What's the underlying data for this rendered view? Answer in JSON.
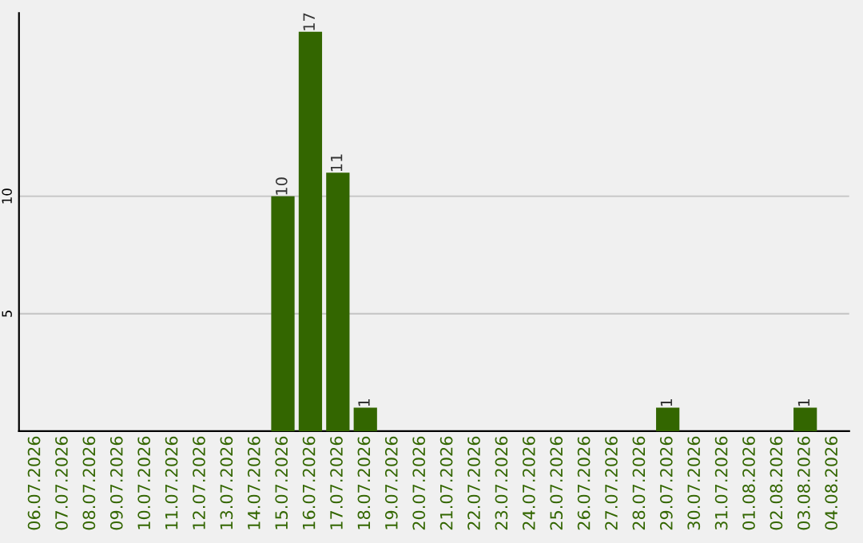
{
  "chart_data": {
    "type": "bar",
    "categories": [
      "06.07.2026",
      "07.07.2026",
      "08.07.2026",
      "09.07.2026",
      "10.07.2026",
      "11.07.2026",
      "12.07.2026",
      "13.07.2026",
      "14.07.2026",
      "15.07.2026",
      "16.07.2026",
      "17.07.2026",
      "18.07.2026",
      "19.07.2026",
      "20.07.2026",
      "21.07.2026",
      "22.07.2026",
      "23.07.2026",
      "24.07.2026",
      "25.07.2026",
      "26.07.2026",
      "27.07.2026",
      "28.07.2026",
      "29.07.2026",
      "30.07.2026",
      "31.07.2026",
      "01.08.2026",
      "02.08.2026",
      "03.08.2026",
      "04.08.2026"
    ],
    "values": [
      0,
      0,
      0,
      0,
      0,
      0,
      0,
      0,
      0,
      10,
      17,
      11,
      1,
      0,
      0,
      0,
      0,
      0,
      0,
      0,
      0,
      0,
      0,
      1,
      0,
      0,
      0,
      0,
      1,
      0
    ],
    "value_labels": [
      null,
      null,
      null,
      null,
      null,
      null,
      null,
      null,
      null,
      "10",
      "17",
      "11",
      "1",
      null,
      null,
      null,
      null,
      null,
      null,
      null,
      null,
      null,
      null,
      "1",
      null,
      null,
      null,
      null,
      "1",
      null
    ],
    "color": "#336600",
    "ylim": [
      0,
      17.8
    ],
    "yticks": [
      5,
      10
    ],
    "grid": "y"
  }
}
